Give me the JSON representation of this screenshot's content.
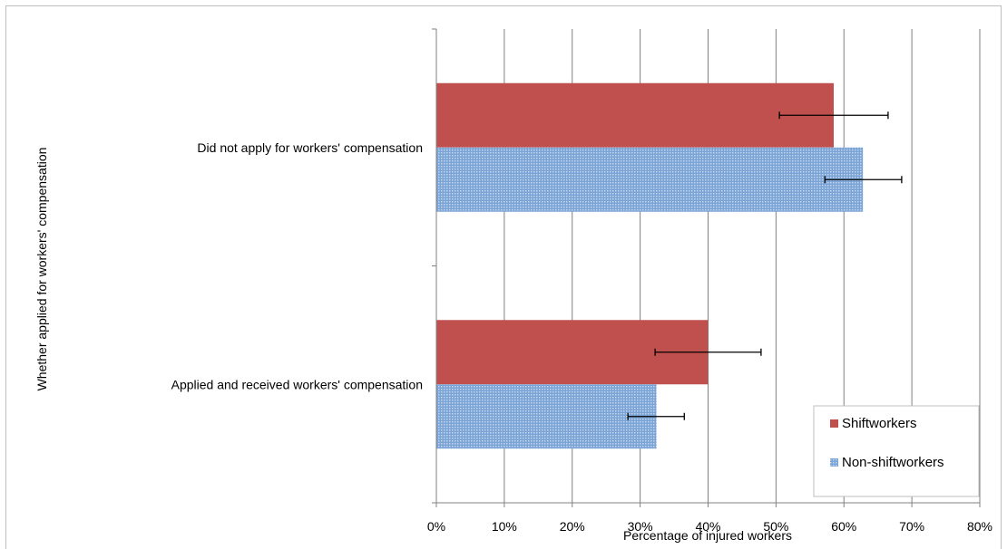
{
  "chart_data": {
    "type": "bar",
    "orientation": "horizontal",
    "xlabel": "Percentage of injured workers",
    "ylabel": "Whether applied for workers' compensation",
    "xlim": [
      0,
      80
    ],
    "x_ticks": [
      "0%",
      "10%",
      "20%",
      "30%",
      "40%",
      "50%",
      "60%",
      "70%",
      "80%"
    ],
    "grid": true,
    "legend_position": "bottom-right",
    "categories": [
      "Did not apply for workers' compensation",
      "Applied and received workers' compensation"
    ],
    "series": [
      {
        "name": "Shiftworkers",
        "color": "#c0504d",
        "values": [
          58.5,
          40.0
        ],
        "error_low": [
          50.5,
          32.2
        ],
        "error_high": [
          66.5,
          47.8
        ]
      },
      {
        "name": "Non-shiftworkers",
        "color": "#4f81bd",
        "pattern": "dotted",
        "values": [
          62.8,
          32.4
        ],
        "error_low": [
          57.2,
          28.2
        ],
        "error_high": [
          68.5,
          36.5
        ]
      }
    ]
  }
}
